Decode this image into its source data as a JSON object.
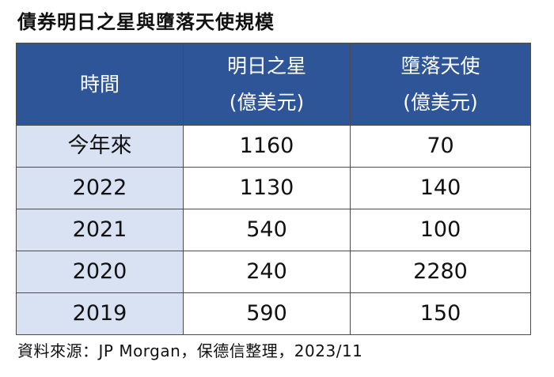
{
  "title": "債券明日之星與墮落天使規模",
  "source": "資料來源：JP Morgan，保德信整理，2023/11",
  "chart_data": {
    "type": "table",
    "columns": [
      {
        "label": "時間",
        "sub": ""
      },
      {
        "label": "明日之星",
        "sub": "(億美元)"
      },
      {
        "label": "墮落天使",
        "sub": "(億美元)"
      }
    ],
    "rows": [
      {
        "period": "今年來",
        "rising_stars": "1160",
        "fallen_angels": "70"
      },
      {
        "period": "2022",
        "rising_stars": "1130",
        "fallen_angels": "140"
      },
      {
        "period": "2021",
        "rising_stars": "540",
        "fallen_angels": "100"
      },
      {
        "period": "2020",
        "rising_stars": "240",
        "fallen_angels": "2280"
      },
      {
        "period": "2019",
        "rising_stars": "590",
        "fallen_angels": "150"
      }
    ]
  },
  "colors": {
    "header_bg": "#2e5597",
    "header_text": "#ffffff",
    "label_col_bg": "#d9e2f3",
    "border": "#4b4b4b"
  }
}
